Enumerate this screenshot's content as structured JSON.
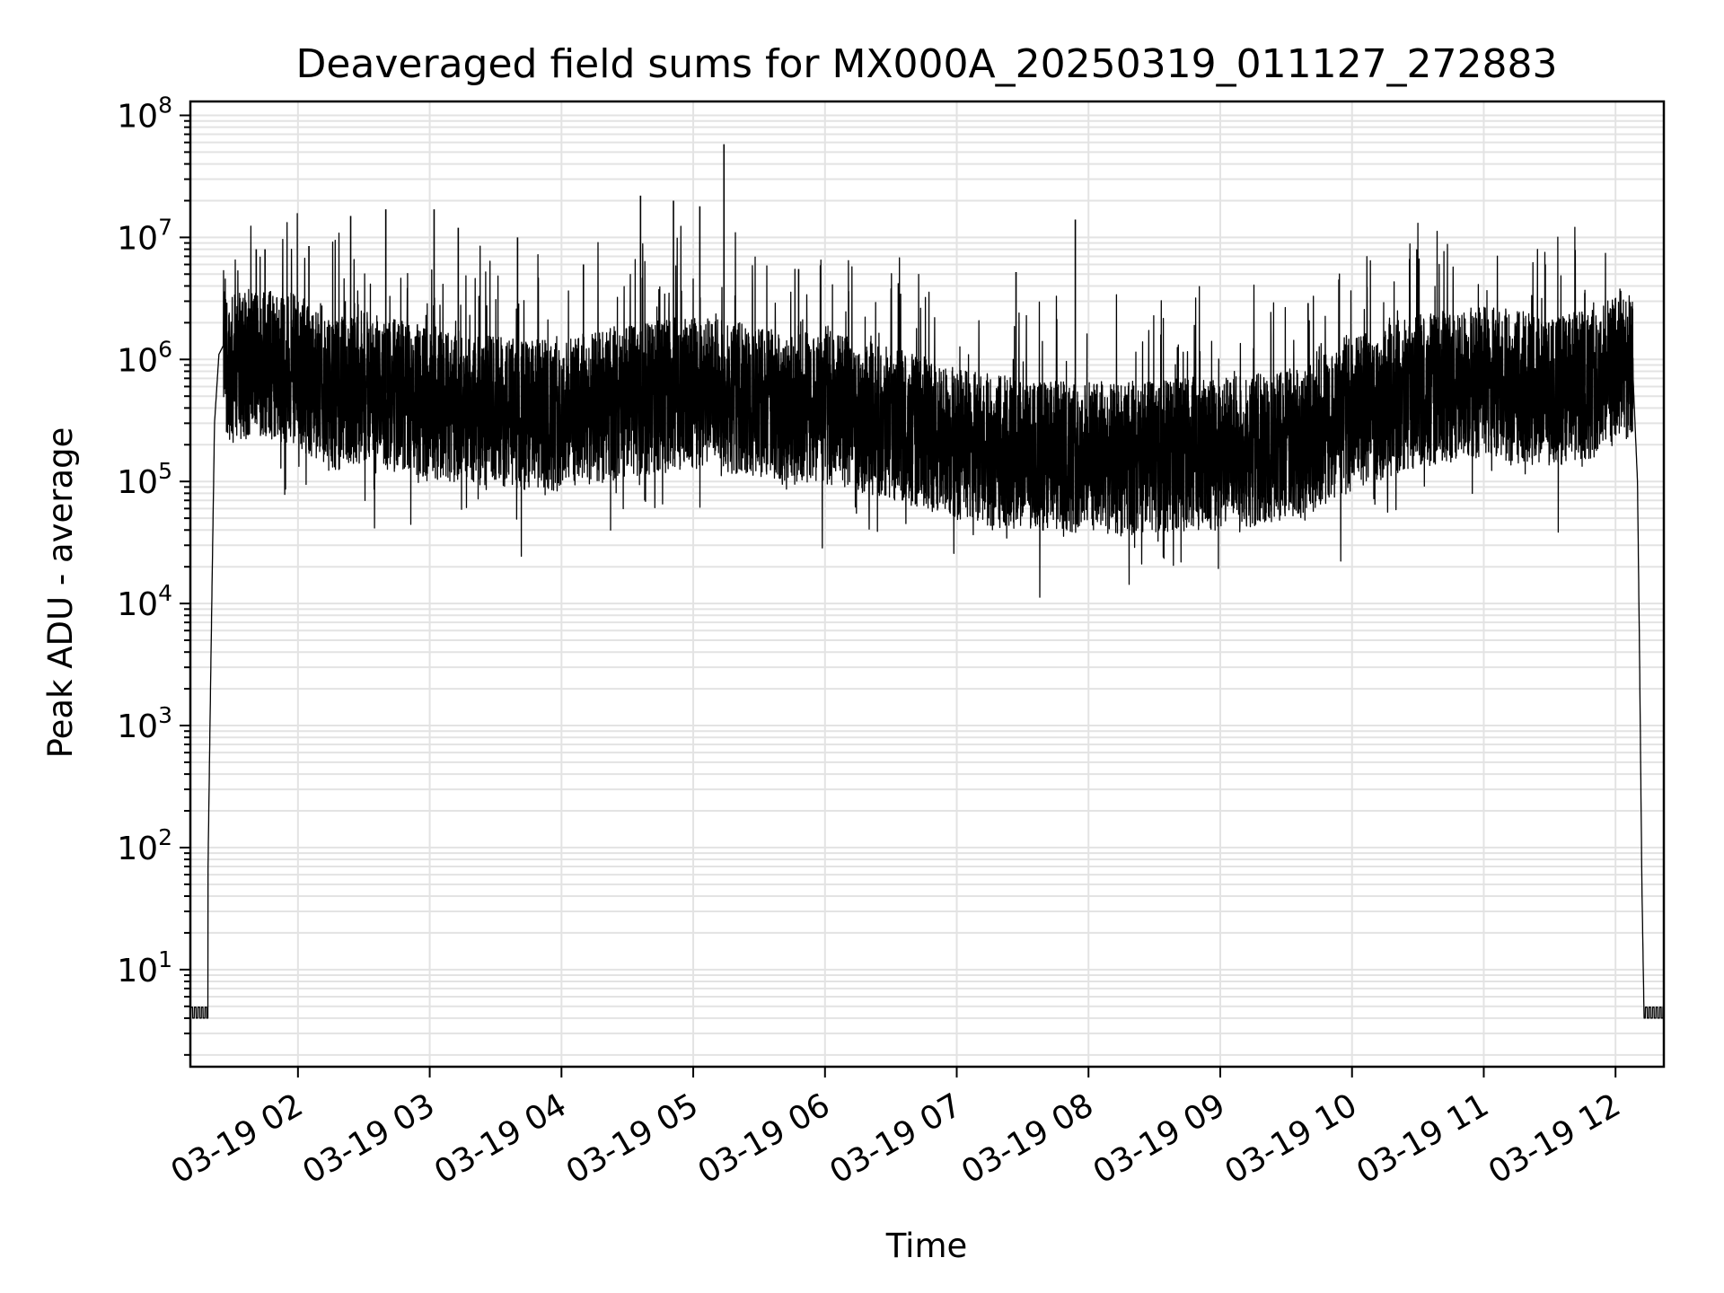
{
  "chart_data": {
    "type": "line",
    "title": "Deaveraged field sums for MX000A_20250319_011127_272883",
    "xlabel": "Time",
    "ylabel": "Peak ADU - average",
    "y_scale": "log",
    "ylim": [
      1.6,
      130000000
    ],
    "xlim": [
      "03-19 01:11",
      "03-19 12:22"
    ],
    "grid": true,
    "x_tick_labels": [
      "03-19 02",
      "03-19 03",
      "03-19 04",
      "03-19 05",
      "03-19 06",
      "03-19 07",
      "03-19 08",
      "03-19 09",
      "03-19 10",
      "03-19 11",
      "03-19 12"
    ],
    "y_tick_labels": [
      {
        "base": "10",
        "exp": "1"
      },
      {
        "base": "10",
        "exp": "2"
      },
      {
        "base": "10",
        "exp": "3"
      },
      {
        "base": "10",
        "exp": "4"
      },
      {
        "base": "10",
        "exp": "5"
      },
      {
        "base": "10",
        "exp": "6"
      },
      {
        "base": "10",
        "exp": "7"
      },
      {
        "base": "10",
        "exp": "8"
      }
    ],
    "series": [
      {
        "color": "#000000",
        "x": [
          "01:11",
          "01:17",
          "01:19",
          "01:20",
          "01:21",
          "01:22",
          "01:24",
          "01:26",
          "01:30",
          "01:35",
          "01:40",
          "01:50",
          "02:00",
          "02:15",
          "02:30",
          "02:45",
          "03:00",
          "03:15",
          "03:30",
          "03:45",
          "04:00",
          "04:15",
          "04:30",
          "04:45",
          "05:00",
          "05:15",
          "05:30",
          "05:45",
          "06:00",
          "06:15",
          "06:30",
          "06:45",
          "07:00",
          "07:15",
          "07:30",
          "07:45",
          "08:00",
          "08:15",
          "08:30",
          "08:45",
          "09:00",
          "09:15",
          "09:30",
          "09:45",
          "10:00",
          "10:15",
          "10:30",
          "10:45",
          "11:00",
          "11:15",
          "11:30",
          "11:45",
          "12:00",
          "12:04",
          "12:08",
          "12:10",
          "12:11",
          "12:12",
          "12:13",
          "12:14",
          "12:15",
          "12:22"
        ],
        "y": [
          4,
          4,
          60,
          1200,
          20000,
          300000,
          1100000,
          1300000,
          800000,
          900000,
          1000000,
          900000,
          800000,
          500000,
          600000,
          500000,
          450000,
          400000,
          380000,
          350000,
          350000,
          400000,
          450000,
          500000,
          550000,
          500000,
          450000,
          400000,
          400000,
          350000,
          300000,
          250000,
          200000,
          180000,
          170000,
          160000,
          160000,
          150000,
          160000,
          170000,
          170000,
          180000,
          200000,
          250000,
          350000,
          450000,
          550000,
          600000,
          650000,
          600000,
          550000,
          600000,
          800000,
          1000000,
          700000,
          100000,
          3000,
          50,
          4,
          4,
          4,
          4
        ],
        "spikes": [
          {
            "x": "01:41",
            "y": 8000000
          },
          {
            "x": "01:45",
            "y": 8000000
          },
          {
            "x": "02:05",
            "y": 8500000
          },
          {
            "x": "02:24",
            "y": 15000000
          },
          {
            "x": "02:40",
            "y": 17000000
          },
          {
            "x": "03:02",
            "y": 17000000
          },
          {
            "x": "03:13",
            "y": 12000000
          },
          {
            "x": "03:40",
            "y": 10000000
          },
          {
            "x": "04:10",
            "y": 6000000
          },
          {
            "x": "04:36",
            "y": 22000000
          },
          {
            "x": "04:51",
            "y": 20000000
          },
          {
            "x": "05:03",
            "y": 18000000
          },
          {
            "x": "05:14",
            "y": 58000000
          },
          {
            "x": "05:48",
            "y": 5500000
          },
          {
            "x": "07:27",
            "y": 5200000
          },
          {
            "x": "07:54",
            "y": 14000000
          },
          {
            "x": "09:40",
            "y": 2900000
          },
          {
            "x": "10:21",
            "y": 2100000
          },
          {
            "x": "11:28",
            "y": 6000000
          },
          {
            "x": "11:46",
            "y": 3500000
          }
        ]
      }
    ]
  }
}
